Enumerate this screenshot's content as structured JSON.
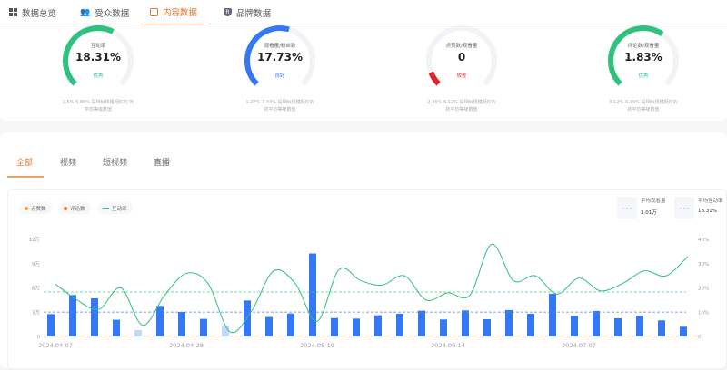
{
  "nav": {
    "tabs": [
      {
        "label": "数据总览",
        "icon": "grid-icon"
      },
      {
        "label": "受众数据",
        "icon": "users-icon"
      },
      {
        "label": "内容数据",
        "icon": "content-icon",
        "active": true
      },
      {
        "label": "品牌数据",
        "icon": "brand-shield-icon"
      }
    ]
  },
  "gauges": [
    {
      "label": "互动率",
      "value": "18.31%",
      "rating": "优秀",
      "color": "#2ec27e",
      "fill": 0.6,
      "desc1": "2.5%-5.86% 是相似规模网红的 的",
      "desc2": "平均等级数值"
    },
    {
      "label": "观看量/粉丝数",
      "value": "17.73%",
      "rating": "良好",
      "color": "#3578f6",
      "fill": 0.56,
      "desc1": "1.27%-7.44% 是相似规模网红的",
      "desc2": "的平均等级数值"
    },
    {
      "label": "点赞数/观看量",
      "value": "0",
      "rating": "较差",
      "color": "#d9262c",
      "fill": 0.09,
      "desc1": "2.46%-5.12% 是相似规模网红的",
      "desc2": "的平均等级数值"
    },
    {
      "label": "评论数/观看量",
      "value": "1.83%",
      "rating": "优秀",
      "color": "#2ec27e",
      "fill": 0.63,
      "desc1": "0.12%-0.39% 是相似规模网红的",
      "desc2": "的平均等级数值"
    }
  ],
  "filters": [
    "全部",
    "视频",
    "短视频",
    "直播"
  ],
  "legend": [
    {
      "label": "点赞数",
      "color": "#f5a623"
    },
    {
      "label": "评论数",
      "color": "#e8762d"
    },
    {
      "label": "互动率",
      "color": "#2ec27e"
    }
  ],
  "averages": [
    {
      "label": "平均观看量",
      "value": "3.01万"
    },
    {
      "label": "平均互动率",
      "value": "18.31%"
    }
  ],
  "chart_data": {
    "type": "bar+line",
    "left_ticks": [
      "0",
      "3万",
      "6万",
      "9万",
      "12万"
    ],
    "left_max": 12,
    "right_ticks": [
      "0",
      "10%",
      "20%",
      "30%",
      "40%"
    ],
    "right_max": 40,
    "x_labels": [
      {
        "index": 0,
        "label": "2024-04-07"
      },
      {
        "index": 6,
        "label": "2024-04-28"
      },
      {
        "index": 12,
        "label": "2024-05-19"
      },
      {
        "index": 18,
        "label": "2024-06-14"
      },
      {
        "index": 24,
        "label": "2024-07-07"
      }
    ],
    "bars_wan": [
      2.77,
      5.13,
      4.71,
      2.06,
      0.79,
      3.78,
      3.03,
      2.17,
      1.23,
      4.45,
      2.4,
      2.84,
      10.26,
      2.28,
      2.21,
      2.62,
      2.81,
      3.18,
      2.1,
      3.22,
      2.13,
      3.26,
      2.81,
      5.28,
      2.55,
      3.15,
      2.25,
      2.58,
      1.99,
      1.2
    ],
    "light_bars": [
      4,
      8
    ],
    "comments_wan": [
      0.05,
      0.06,
      0.04,
      0.03,
      0,
      0.04,
      0.05,
      0.03,
      0,
      0.04,
      0.05,
      0.04,
      0.05,
      0.05,
      0.04,
      0.03,
      0.05,
      0.03,
      0.04,
      0.04,
      0.07,
      0.05,
      0.04,
      0.07,
      0.04,
      0.04,
      0.03,
      0.04,
      0.03,
      0.03
    ],
    "interaction_rate_pct": [
      21.6,
      15,
      11.2,
      20,
      4.6,
      16.9,
      26,
      21.8,
      1.9,
      10.6,
      27,
      21.8,
      6.2,
      27.5,
      23,
      21.2,
      25,
      15,
      18,
      17,
      38,
      23,
      25,
      17.5,
      24,
      18.8,
      21.8,
      27,
      25,
      33
    ],
    "avg_views_wan": 3.01,
    "avg_rate_pct": 18.31
  }
}
